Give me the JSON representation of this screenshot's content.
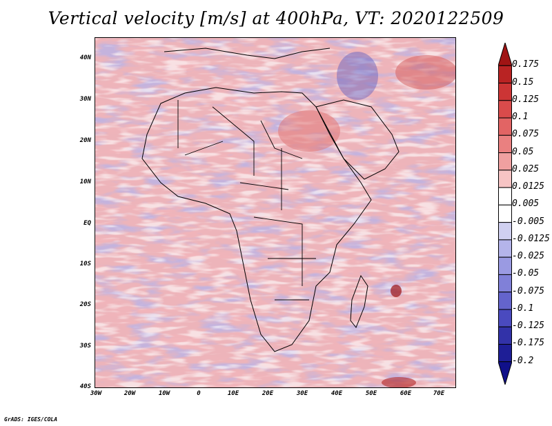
{
  "title": "Vertical velocity [m/s] at 400hPa, VT: 2020122509",
  "credit": "GrADS: IGES/COLA",
  "map": {
    "lat_range": [
      -40,
      45
    ],
    "lon_range": [
      -30,
      75
    ],
    "lat_ticks": [
      "40N",
      "30N",
      "20N",
      "10N",
      "EQ",
      "10S",
      "20S",
      "30S",
      "40S"
    ],
    "lon_ticks": [
      "30W",
      "20W",
      "10W",
      "0",
      "10E",
      "20E",
      "30E",
      "40E",
      "50E",
      "60E",
      "70E"
    ]
  },
  "colorbar": {
    "labels": [
      "0.175",
      "0.15",
      "0.125",
      "0.1",
      "0.075",
      "0.05",
      "0.025",
      "0.0125",
      "0.005",
      "-0.005",
      "-0.0125",
      "-0.025",
      "-0.05",
      "-0.075",
      "-0.1",
      "-0.125",
      "-0.175",
      "-0.2"
    ],
    "colors": [
      "#a01414",
      "#b92323",
      "#cc3535",
      "#d94b4b",
      "#e26464",
      "#ea8080",
      "#f0a0a0",
      "#f6c4c4",
      "#ffffff",
      "#ffffff",
      "#d0d0f0",
      "#b4b4ea",
      "#9a9ae2",
      "#8080d8",
      "#6464cc",
      "#4a4abf",
      "#3232a8",
      "#1e1e96",
      "#10108a"
    ]
  }
}
